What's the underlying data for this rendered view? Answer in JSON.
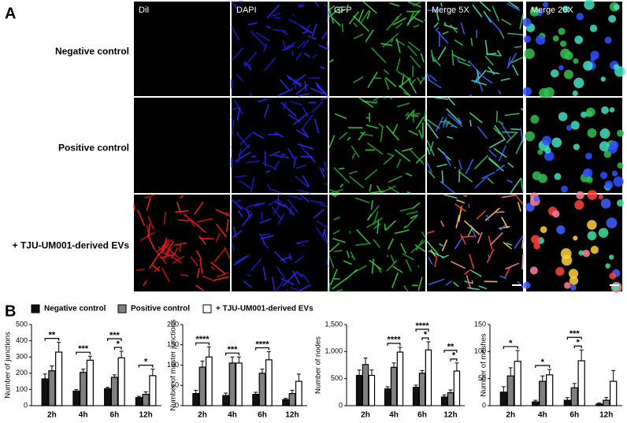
{
  "panel_a": {
    "label": "A",
    "columns": [
      "DiI",
      "DAPI",
      "GFP",
      "Merge 5X",
      "Merge 20X"
    ],
    "rows": [
      "Negative control",
      "Positive control",
      "+ TJU-UM001-derived EVs"
    ]
  },
  "panel_b": {
    "label": "B"
  },
  "legend": [
    {
      "name": "Negative control",
      "color": "#111111"
    },
    {
      "name": "Positive control",
      "color": "#808080"
    },
    {
      "name": "+ TJU-UM001-derived EVs",
      "color": "#ffffff"
    }
  ],
  "chart_data": [
    {
      "type": "bar",
      "y_label": "Number of junctions",
      "categories": [
        "2h",
        "4h",
        "6h",
        "12h"
      ],
      "ylim": [
        0,
        500
      ],
      "yticks": [
        0,
        100,
        200,
        300,
        400,
        500
      ],
      "series": [
        {
          "values": [
            165,
            90,
            105,
            50
          ],
          "errors": [
            30,
            10,
            8,
            8
          ]
        },
        {
          "values": [
            215,
            205,
            175,
            70
          ],
          "errors": [
            30,
            20,
            15,
            15
          ]
        },
        {
          "values": [
            330,
            280,
            295,
            185
          ],
          "errors": [
            60,
            25,
            40,
            40
          ]
        }
      ],
      "annotations": [
        {
          "category": 0,
          "from": 0,
          "to": 2,
          "label": "**"
        },
        {
          "category": 1,
          "from": 0,
          "to": 2,
          "label": "***"
        },
        {
          "category": 2,
          "from": 1,
          "to": 2,
          "label": "*"
        },
        {
          "category": 2,
          "from": 0,
          "to": 2,
          "label": "***"
        },
        {
          "category": 3,
          "from": 0,
          "to": 2,
          "label": "*"
        }
      ]
    },
    {
      "type": "bar",
      "y_label": "Number of master junctions",
      "categories": [
        "2h",
        "4h",
        "6h",
        "12h"
      ],
      "ylim": [
        0,
        200
      ],
      "yticks": [
        0,
        50,
        100,
        150,
        200
      ],
      "series": [
        {
          "values": [
            30,
            25,
            28,
            15
          ],
          "errors": [
            8,
            6,
            5,
            3
          ]
        },
        {
          "values": [
            95,
            105,
            80,
            30
          ],
          "errors": [
            15,
            15,
            10,
            8
          ]
        },
        {
          "values": [
            120,
            105,
            113,
            60
          ],
          "errors": [
            25,
            15,
            20,
            18
          ]
        }
      ],
      "annotations": [
        {
          "category": 0,
          "from": 0,
          "to": 2,
          "label": "****"
        },
        {
          "category": 1,
          "from": 0,
          "to": 2,
          "label": "***"
        },
        {
          "category": 2,
          "from": 0,
          "to": 2,
          "label": "****"
        }
      ]
    },
    {
      "type": "bar",
      "y_label": "Number of nodes",
      "categories": [
        "2h",
        "4h",
        "6h",
        "12h"
      ],
      "ylim": [
        0,
        1500
      ],
      "yticks": [
        0,
        500,
        {
          "value": 1000,
          "label": "1,000"
        },
        {
          "value": 1500,
          "label": "1,500"
        }
      ],
      "series": [
        {
          "values": [
            560,
            310,
            340,
            160
          ],
          "errors": [
            100,
            40,
            40,
            40
          ]
        },
        {
          "values": [
            760,
            710,
            600,
            240
          ],
          "errors": [
            120,
            80,
            50,
            50
          ]
        },
        {
          "values": [
            560,
            990,
            1030,
            640
          ],
          "errors": [
            100,
            90,
            150,
            150
          ]
        }
      ],
      "annotations": [
        {
          "category": 1,
          "from": 0,
          "to": 2,
          "label": "****"
        },
        {
          "category": 2,
          "from": 1,
          "to": 2,
          "label": "*"
        },
        {
          "category": 2,
          "from": 0,
          "to": 2,
          "label": "****"
        },
        {
          "category": 3,
          "from": 1,
          "to": 2,
          "label": "*"
        },
        {
          "category": 3,
          "from": 0,
          "to": 2,
          "label": "**"
        }
      ]
    },
    {
      "type": "bar",
      "y_label": "Number of meshes",
      "categories": [
        "2h",
        "4h",
        "6h",
        "12h"
      ],
      "ylim": [
        0,
        150
      ],
      "yticks": [
        0,
        50,
        100,
        150
      ],
      "series": [
        {
          "values": [
            25,
            7,
            10,
            3
          ],
          "errors": [
            10,
            3,
            5,
            2
          ]
        },
        {
          "values": [
            55,
            45,
            33,
            10
          ],
          "errors": [
            15,
            10,
            8,
            5
          ]
        },
        {
          "values": [
            82,
            57,
            83,
            45
          ],
          "errors": [
            20,
            10,
            20,
            20
          ]
        }
      ],
      "annotations": [
        {
          "category": 0,
          "from": 0,
          "to": 2,
          "label": "*"
        },
        {
          "category": 1,
          "from": 0,
          "to": 2,
          "label": "*"
        },
        {
          "category": 2,
          "from": 1,
          "to": 2,
          "label": "*"
        },
        {
          "category": 2,
          "from": 0,
          "to": 2,
          "label": "***"
        }
      ]
    }
  ]
}
